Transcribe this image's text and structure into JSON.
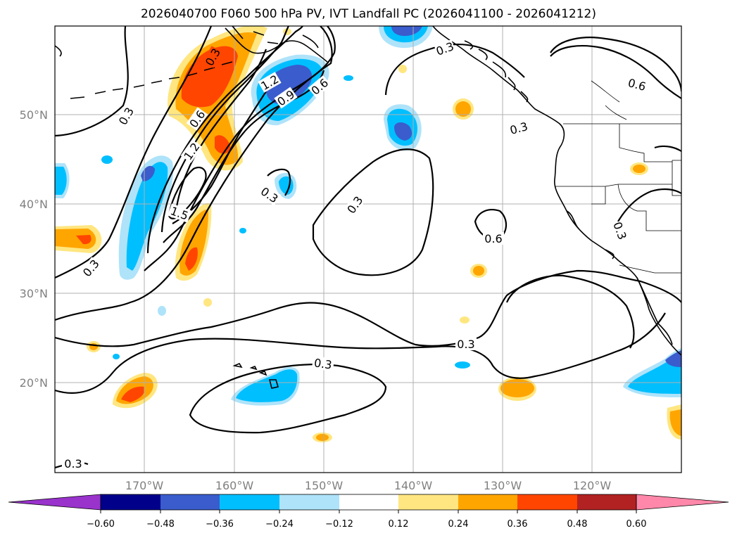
{
  "title": "2026040700 F060 500 hPa PV, IVT Landfall PC (2026041100 - 2026041212)",
  "map": {
    "lat_labels": [
      "50°N",
      "40°N",
      "30°N",
      "20°N"
    ],
    "lon_labels": [
      "170°W",
      "160°W",
      "150°W",
      "140°W",
      "130°W",
      "120°W"
    ],
    "contour_labels": [
      "0.3",
      "0.3",
      "0.3",
      "0.3",
      "0.3",
      "0.3",
      "0.3",
      "0.3",
      "0.3",
      "0.3",
      "0.6",
      "0.6",
      "0.6",
      "0.6",
      "0.9",
      "1.2",
      "1.2",
      "1.5",
      "0.3"
    ],
    "contour_label_list": [
      {
        "text": "0.3"
      },
      {
        "text": "0.3"
      },
      {
        "text": "0.3"
      },
      {
        "text": "0.3"
      },
      {
        "text": "0.3"
      },
      {
        "text": "0.3"
      },
      {
        "text": "0.3"
      },
      {
        "text": "0.3"
      },
      {
        "text": "0.3"
      },
      {
        "text": "0.3"
      },
      {
        "text": "0.6"
      },
      {
        "text": "0.6"
      },
      {
        "text": "0.6"
      },
      {
        "text": "0.6"
      },
      {
        "text": "0.9"
      },
      {
        "text": "1.2"
      },
      {
        "text": "1.2"
      },
      {
        "text": "1.5"
      },
      {
        "text": "0.3"
      }
    ]
  },
  "colorbar": {
    "ticks": [
      "−0.60",
      "−0.48",
      "−0.36",
      "−0.24",
      "−0.12",
      "0.12",
      "0.24",
      "0.36",
      "0.48",
      "0.60"
    ],
    "colors": [
      "#9933cc",
      "#00008b",
      "#3a5ccc",
      "#00bfff",
      "#aee3fa",
      "#ffffff",
      "#ffe680",
      "#ffa500",
      "#ff4500",
      "#b22222",
      "#ff88aa"
    ]
  },
  "fill_colors": {
    "neg_strong": "#3a5ccc",
    "neg_mid": "#00bfff",
    "neg_weak": "#aee3fa",
    "pos_weak": "#ffe680",
    "pos_mid": "#ffa500",
    "pos_strong": "#ff4500",
    "pos_max": "#b22222"
  }
}
